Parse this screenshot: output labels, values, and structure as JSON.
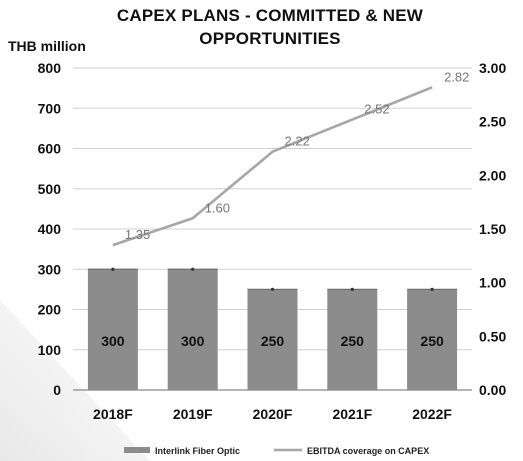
{
  "chart_data": {
    "type": "bar",
    "title_line1": "CAPEX PLANS - COMMITTED & NEW",
    "title_line2": "OPPORTUNITIES",
    "ylabel_left": "THB million",
    "categories": [
      "2018F",
      "2019F",
      "2020F",
      "2021F",
      "2022F"
    ],
    "ylim_left": [
      0,
      800
    ],
    "yticks_left": [
      "0",
      "100",
      "200",
      "300",
      "400",
      "500",
      "600",
      "700",
      "800"
    ],
    "ylim_right": [
      0,
      3.0
    ],
    "yticks_right": [
      "0.00",
      "0.50",
      "1.00",
      "1.50",
      "2.00",
      "2.50",
      "3.00"
    ],
    "series": [
      {
        "name": "Interlink Fiber Optic",
        "type": "bar",
        "axis": "left",
        "values": [
          300,
          300,
          250,
          250,
          250
        ],
        "labels": [
          "300",
          "300",
          "250",
          "250",
          "250"
        ],
        "color": "#8c8c8c"
      },
      {
        "name": "EBITDA coverage on CAPEX",
        "type": "line",
        "axis": "right",
        "values": [
          1.35,
          1.6,
          2.22,
          2.52,
          2.82
        ],
        "labels": [
          "1.35",
          "1.60",
          "2.22",
          "2.52",
          "2.82"
        ],
        "color": "#a6a6a6"
      }
    ],
    "grid": true,
    "legend_placement": "bottom"
  }
}
